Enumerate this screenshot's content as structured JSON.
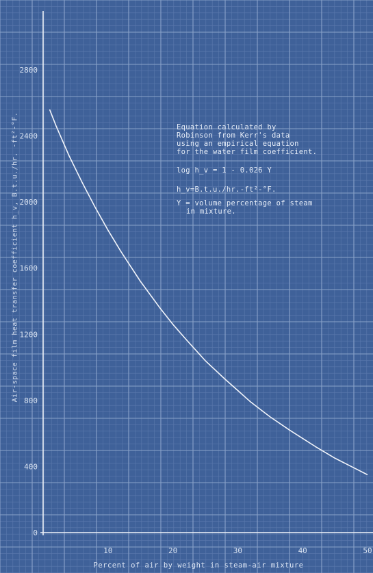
{
  "chart_data": {
    "type": "line",
    "xlabel": "Percent of air by weight in steam-air mixture",
    "ylabel": "Air-space film heat transfer coefficient h_v, B.t.u./hr. -ft²-°F.",
    "xlim": [
      0,
      50
    ],
    "ylim": [
      0,
      2600
    ],
    "x_ticks": [
      "10",
      "20",
      "30",
      "40",
      "50"
    ],
    "y_ticks": [
      "0",
      "400",
      "800",
      "1200",
      "1600",
      "2000",
      "2400",
      "2800"
    ],
    "y_tick_values": [
      0,
      400,
      800,
      1200,
      1600,
      2000,
      2400,
      2800
    ],
    "grid": true,
    "series": [
      {
        "x": [
          1,
          2,
          4,
          6,
          8,
          10,
          12,
          15,
          18,
          20,
          22,
          25,
          28,
          30,
          32,
          35,
          38,
          40,
          42,
          45,
          48,
          50
        ],
        "y": [
          2560,
          2460,
          2280,
          2120,
          1970,
          1830,
          1700,
          1520,
          1360,
          1260,
          1170,
          1040,
          930,
          860,
          790,
          700,
          620,
          570,
          520,
          450,
          390,
          350
        ]
      }
    ],
    "annotations": [
      "Equation calculated by",
      "Robinson from Kerr's data",
      "using an empirical equation",
      "for the water film coefficient.",
      "log h_v = 1 - 0.026 Y",
      "h_v=B.t.u./hr.-ft²-°F.",
      "Y = volume percentage of steam",
      "in mixture."
    ]
  },
  "colors": {
    "background": "#3f6199",
    "grid_minor": "#5b79ad",
    "grid_major": "#8aa2c9",
    "curve": "#f2f5fb",
    "axes": "#f0f4fa"
  }
}
